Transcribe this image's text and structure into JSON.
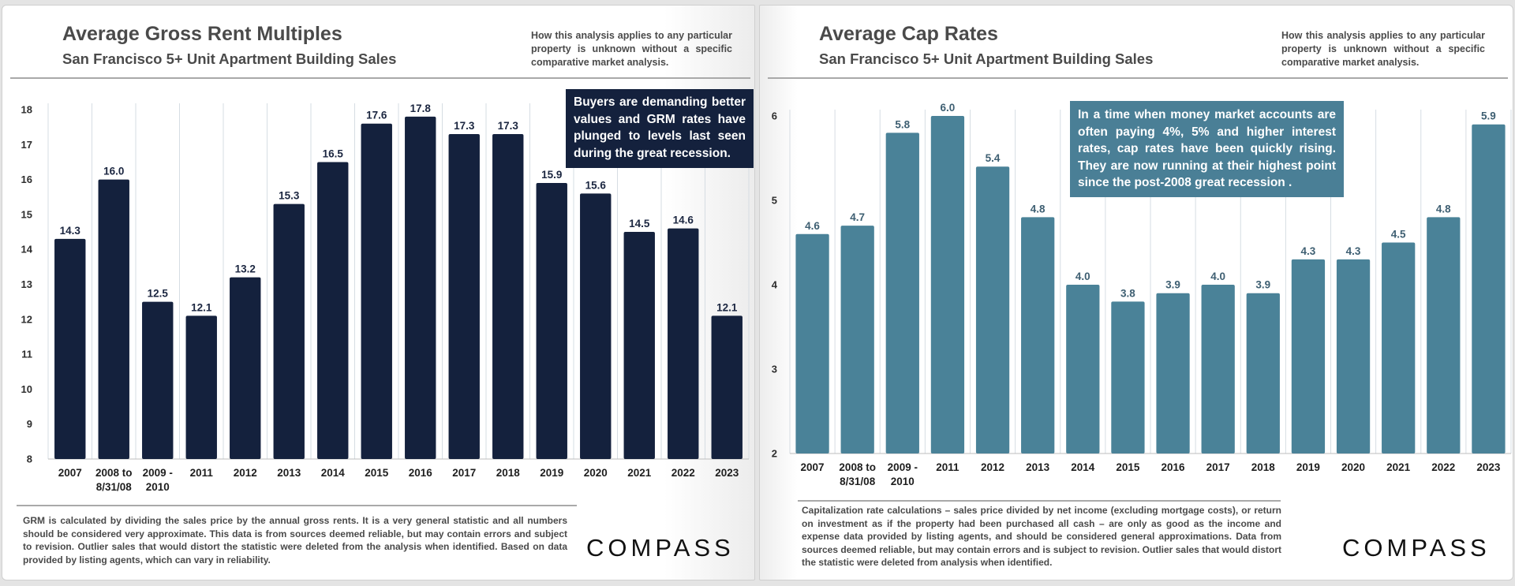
{
  "left": {
    "title": "Average Gross Rent Multiples",
    "subtitle": "San Francisco 5+ Unit Apartment Building Sales",
    "disclaimer": "How this analysis applies to any particular property is unknown without a specific comparative market analysis.",
    "callout": "Buyers are demanding better values and GRM rates have plunged to levels last seen during the great recession.",
    "footnote": "GRM is calculated by dividing the sales price by the annual gross rents. It is a very general statistic and all numbers should be considered very approximate. This data is from sources deemed reliable, but may contain errors and subject to revision. Outlier sales that would distort the statistic were deleted from the analysis when identified. Based on data provided by listing agents, which can vary in reliability.",
    "logo": "COMPASS"
  },
  "right": {
    "title": "Average Cap Rates",
    "subtitle": "San Francisco 5+ Unit Apartment Building Sales",
    "disclaimer": "How this analysis applies to any particular property is unknown without a specific comparative market analysis.",
    "callout": "In a time when money market accounts are often paying 4%, 5% and higher interest rates, cap rates have been quickly rising. They are now running at their highest point since the post-2008 great recession .",
    "footnote": "Capitalization rate calculations – sales price divided by net income (excluding mortgage costs), or return on investment as if the property had been purchased all cash – are only as good as the income and expense data provided by listing agents, and should be considered general approximations. Data from sources deemed reliable, but may contain errors and is subject to revision. Outlier sales that would distort the statistic were deleted from analysis when identified.",
    "logo": "COMPASS"
  },
  "chart_data": [
    {
      "type": "bar",
      "title": "Average Gross Rent Multiples",
      "subtitle": "San Francisco 5+ Unit Apartment Building Sales",
      "categories": [
        "2007",
        "2008 to 8/31/08",
        "2009 - 2010",
        "2011",
        "2012",
        "2013",
        "2014",
        "2015",
        "2016",
        "2017",
        "2018",
        "2019",
        "2020",
        "2021",
        "2022",
        "2023"
      ],
      "values": [
        14.3,
        16.0,
        12.5,
        12.1,
        13.2,
        15.3,
        16.5,
        17.6,
        17.8,
        17.3,
        17.3,
        15.9,
        15.6,
        14.5,
        14.6,
        12.1
      ],
      "ylim": [
        8,
        18
      ],
      "yticks": [
        8,
        9,
        10,
        11,
        12,
        13,
        14,
        15,
        16,
        17,
        18
      ],
      "grid": "vertical",
      "color": "#14213d",
      "xlabel": "",
      "ylabel": ""
    },
    {
      "type": "bar",
      "title": "Average Cap Rates",
      "subtitle": "San Francisco 5+ Unit Apartment Building Sales",
      "categories": [
        "2007",
        "2008 to 8/31/08",
        "2009 - 2010",
        "2011",
        "2012",
        "2013",
        "2014",
        "2015",
        "2016",
        "2017",
        "2018",
        "2019",
        "2020",
        "2021",
        "2022",
        "2023"
      ],
      "values": [
        4.6,
        4.7,
        5.8,
        6.0,
        5.4,
        4.8,
        4.0,
        3.8,
        3.9,
        4.0,
        3.9,
        4.3,
        4.3,
        4.5,
        4.8,
        5.9
      ],
      "ylim": [
        2,
        6
      ],
      "yticks": [
        2,
        3,
        4,
        5,
        6
      ],
      "grid": "vertical",
      "color": "#4a8298",
      "xlabel": "",
      "ylabel": ""
    }
  ]
}
